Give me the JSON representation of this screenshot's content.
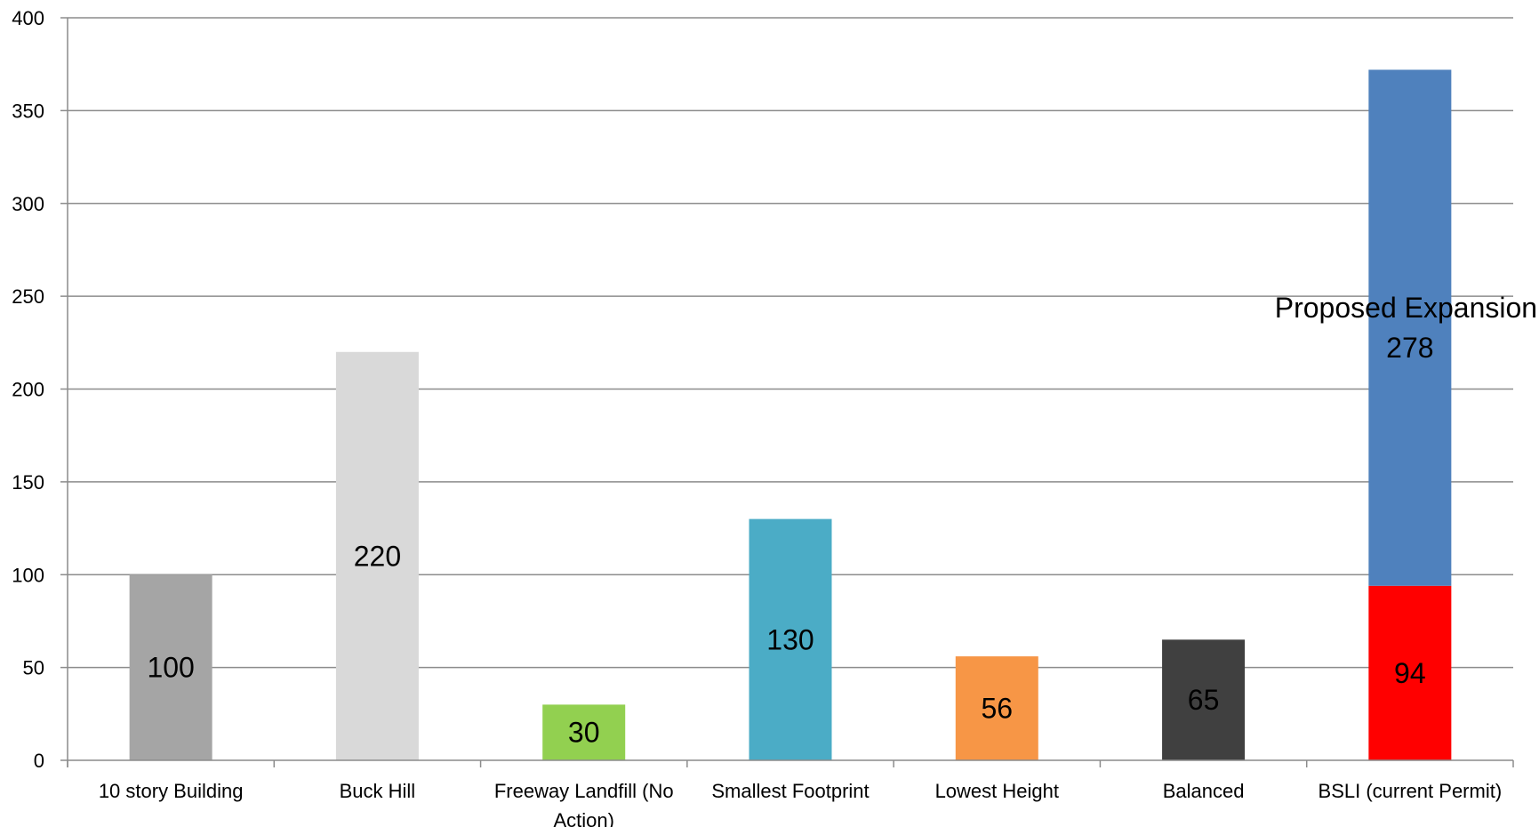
{
  "chart_data": {
    "type": "bar",
    "stacked": true,
    "title": "",
    "xlabel": "",
    "ylabel": "",
    "ylim": [
      0,
      400
    ],
    "yticks": [
      0,
      50,
      100,
      150,
      200,
      250,
      300,
      350,
      400
    ],
    "y_tick_labels": [
      "0",
      "50",
      "100",
      "150",
      "200",
      "250",
      "300",
      "350",
      "400"
    ],
    "grid": true,
    "legend": "none",
    "categories": [
      "10 story Building",
      "Buck Hill",
      "Freeway Landfill (No Action)",
      "Smallest Footprint",
      "Lowest Height",
      "Balanced",
      "BSLI (current Permit)"
    ],
    "category_label_lines": [
      [
        "10 story Building"
      ],
      [
        "Buck Hill"
      ],
      [
        "Freeway Landfill (No",
        "Action)"
      ],
      [
        "Smallest Footprint"
      ],
      [
        "Lowest Height"
      ],
      [
        "Balanced"
      ],
      [
        "BSLI (current Permit)"
      ]
    ],
    "bars": [
      {
        "segments": [
          {
            "value": 100,
            "color": "#a5a5a5",
            "label": "100"
          }
        ]
      },
      {
        "segments": [
          {
            "value": 220,
            "color": "#d9d9d9",
            "label": "220"
          }
        ]
      },
      {
        "segments": [
          {
            "value": 30,
            "color": "#92d050",
            "label": "30"
          }
        ]
      },
      {
        "segments": [
          {
            "value": 130,
            "color": "#4bacc6",
            "label": "130"
          }
        ]
      },
      {
        "segments": [
          {
            "value": 56,
            "color": "#f79646",
            "label": "56"
          }
        ]
      },
      {
        "segments": [
          {
            "value": 65,
            "color": "#404040",
            "label": "65"
          }
        ]
      },
      {
        "segments": [
          {
            "value": 94,
            "color": "#ff0000",
            "label": "94"
          },
          {
            "value": 278,
            "color": "#4f81bd",
            "label_lines": [
              "Proposed Expansion,",
              "278"
            ]
          }
        ]
      }
    ],
    "colors": {
      "gridline": "#8c8c8c",
      "axis": "#8c8c8c"
    }
  }
}
